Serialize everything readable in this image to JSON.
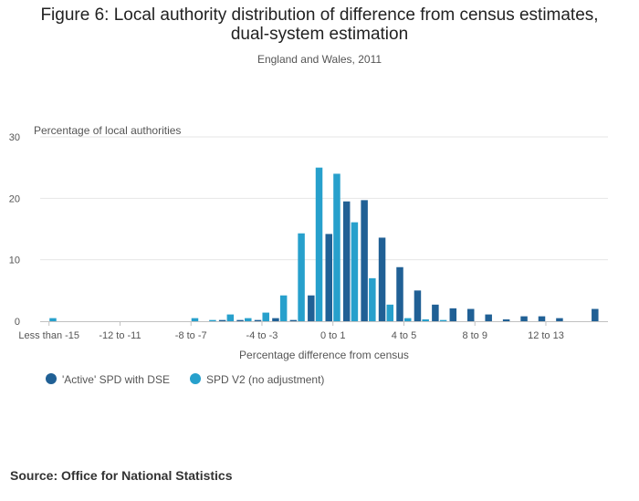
{
  "title_lines": [
    "Figure 6: Local authority distribution of difference from census estimates,",
    "dual-system estimation"
  ],
  "subtitle": "England and Wales, 2011",
  "source": "Source: Office for National Statistics",
  "colors": {
    "series1": "#206095",
    "series2": "#27a0cc",
    "grid": "#e6e6e6",
    "axis": "#c0c0c0",
    "text": "#555555"
  },
  "chart_data": {
    "type": "bar",
    "ylabel": "Percentage of local authorities",
    "xlabel": "Percentage difference from census",
    "ylim": [
      0,
      30
    ],
    "yticks": [
      0,
      10,
      20,
      30
    ],
    "grid": true,
    "legend_position": "bottom-left",
    "categories": [
      "Less than -15",
      "-15 to -14",
      "-14 to -13",
      "-13 to -12",
      "-12 to -11",
      "-11 to -10",
      "-10 to -9",
      "-9 to -8",
      "-8 to -7",
      "-7 to -6",
      "-6 to -5",
      "-5 to -4",
      "-4 to -3",
      "-3 to -2",
      "-2 to -1",
      "-1 to 0",
      "0 to 1",
      "1 to 2",
      "2 to 3",
      "3 to 4",
      "4 to 5",
      "5 to 6",
      "6 to 7",
      "7 to 8",
      "8 to 9",
      "9 to 10",
      "10 to 11",
      "11 to 12",
      "12 to 13",
      "13 to 14",
      "14 to 15",
      "More than 15"
    ],
    "tick_labels": [
      {
        "index": 0,
        "label": "Less than -15"
      },
      {
        "index": 4,
        "label": "-12 to -11"
      },
      {
        "index": 8,
        "label": "-8 to -7"
      },
      {
        "index": 12,
        "label": "-4 to -3"
      },
      {
        "index": 16,
        "label": "0 to 1"
      },
      {
        "index": 20,
        "label": "4 to 5"
      },
      {
        "index": 24,
        "label": "8 to 9"
      },
      {
        "index": 28,
        "label": "12 to 13"
      }
    ],
    "series": [
      {
        "name": "'Active' SPD with DSE",
        "values": [
          0,
          0,
          0,
          0,
          0,
          0,
          0,
          0,
          0,
          0,
          0.2,
          0.2,
          0.2,
          0.5,
          0.2,
          4.2,
          14.2,
          19.5,
          19.7,
          13.6,
          8.8,
          5.0,
          2.7,
          2.1,
          2.0,
          1.1,
          0.3,
          0.8,
          0.8,
          0.5,
          0,
          2.0
        ]
      },
      {
        "name": "SPD V2 (no adjustment)",
        "values": [
          0.5,
          0,
          0,
          0,
          0,
          0,
          0,
          0,
          0.5,
          0.2,
          1.1,
          0.5,
          1.4,
          4.2,
          14.3,
          25.0,
          24.0,
          16.1,
          7.0,
          2.7,
          0.5,
          0.3,
          0.2,
          0,
          0,
          0,
          0,
          0,
          0,
          0,
          0,
          0
        ]
      }
    ]
  }
}
